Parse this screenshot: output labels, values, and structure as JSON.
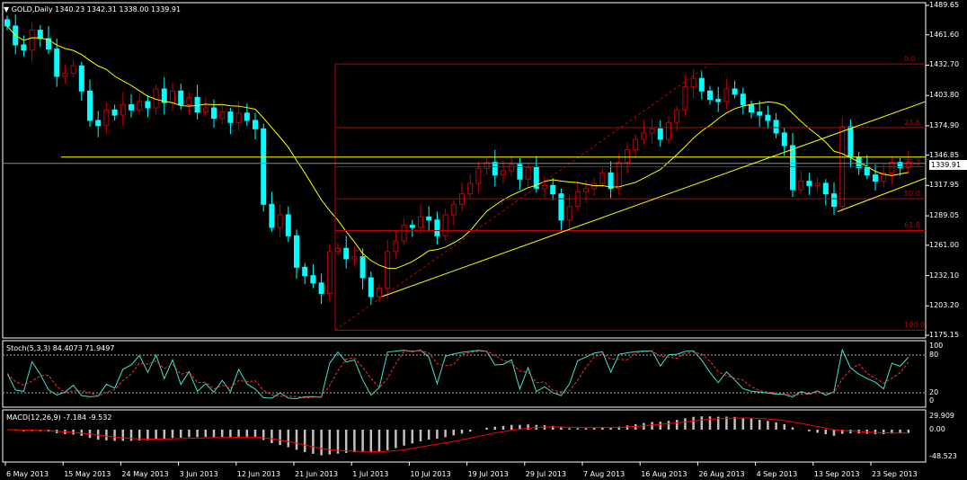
{
  "header": {
    "symbol_label": "GOLD,Daily",
    "ohlc": "1340.23 1342.31 1338.00 1339.91"
  },
  "stoch_label": "Stoch(5,3,3) 84.4073 71.9497",
  "macd_label": "MACD(12,26,9) -7.184 -9.532",
  "current_price": "1339.91",
  "colors": {
    "up": "#00ffff",
    "down": "#00ffff",
    "up_outline": "#c00000",
    "ma": "#ffff00",
    "fib": "#c00000",
    "grid": "#ffffff",
    "stoch_main": "#40e0d0",
    "stoch_signal": "#ff3030",
    "macd_hist": "#c0c0c0",
    "macd_signal": "#ff0000"
  },
  "price_axis": [
    "1489.65",
    "1461.60",
    "1432.70",
    "1403.80",
    "1374.90",
    "1346.85",
    "1317.95",
    "1289.05",
    "1261.00",
    "1232.10",
    "1203.20",
    "1175.15"
  ],
  "stoch_axis": [
    "100",
    "80",
    "20",
    "0"
  ],
  "macd_axis": [
    "29.909",
    "0.00",
    "-48.523"
  ],
  "fib_levels": [
    {
      "label": "0.0",
      "price": 1433.8
    },
    {
      "label": "23.6",
      "price": 1373.2
    },
    {
      "label": "38.2",
      "price": 1335.8
    },
    {
      "label": "50.0",
      "price": 1305.3
    },
    {
      "label": "61.8",
      "price": 1275.0
    },
    {
      "label": "100.0",
      "price": 1180.0
    }
  ],
  "x_axis": [
    "6 May 2013",
    "15 May 2013",
    "24 May 2013",
    "3 Jun 2013",
    "12 Jun 2013",
    "21 Jun 2013",
    "1 Jul 2013",
    "10 Jul 2013",
    "19 Jul 2013",
    "29 Jul 2013",
    "7 Aug 2013",
    "16 Aug 2013",
    "26 Aug 2013",
    "4 Sep 2013",
    "13 Sep 2013",
    "23 Sep 2013"
  ],
  "chart_data": {
    "type": "candlestick",
    "title": "GOLD,Daily",
    "ylim": [
      1175.15,
      1489.65
    ],
    "closes": [
      1470,
      1452,
      1447,
      1466,
      1458,
      1448,
      1422,
      1425,
      1432,
      1408,
      1380,
      1375,
      1390,
      1385,
      1395,
      1390,
      1398,
      1392,
      1410,
      1397,
      1408,
      1395,
      1402,
      1388,
      1392,
      1382,
      1388,
      1378,
      1387,
      1380,
      1372,
      1300,
      1278,
      1290,
      1270,
      1240,
      1232,
      1225,
      1215,
      1255,
      1258,
      1248,
      1250,
      1230,
      1212,
      1220,
      1255,
      1265,
      1280,
      1278,
      1288,
      1285,
      1270,
      1290,
      1300,
      1310,
      1320,
      1334,
      1340,
      1328,
      1332,
      1338,
      1324,
      1335,
      1315,
      1318,
      1310,
      1285,
      1298,
      1312,
      1315,
      1320,
      1330,
      1315,
      1340,
      1352,
      1362,
      1368,
      1372,
      1362,
      1378,
      1390,
      1412,
      1420,
      1408,
      1400,
      1398,
      1410,
      1405,
      1395,
      1388,
      1385,
      1380,
      1368,
      1356,
      1314,
      1322,
      1318,
      1320,
      1310,
      1298,
      1374,
      1345,
      1335,
      1328,
      1322,
      1330,
      1340,
      1335,
      1339.91
    ],
    "ma_period": 13,
    "stoch": {
      "main_last": 84.4073,
      "signal_last": 71.9497
    },
    "macd": {
      "main_last": -7.184,
      "signal_last": -9.532
    }
  }
}
